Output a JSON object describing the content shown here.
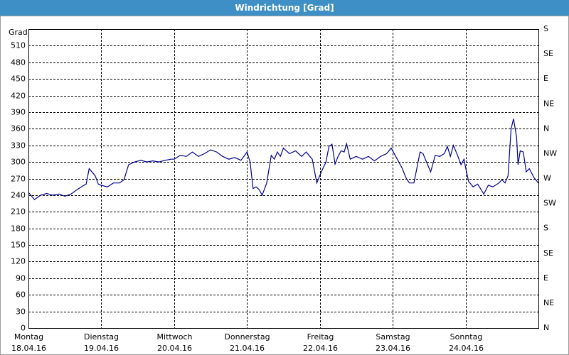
{
  "chart_data": {
    "type": "line",
    "title": "Windrichtung [Grad]",
    "y_label": "Grad",
    "xlim": [
      0,
      168
    ],
    "xticks": [
      {
        "value": 0,
        "label": "Montag",
        "date": "18.04.16"
      },
      {
        "value": 24,
        "label": "Dienstag",
        "date": "19.04.16"
      },
      {
        "value": 48,
        "label": "Mittwoch",
        "date": "20.04.16"
      },
      {
        "value": 72,
        "label": "Donnerstag",
        "date": "21.04.16"
      },
      {
        "value": 96,
        "label": "Freitag",
        "date": "22.04.16"
      },
      {
        "value": 120,
        "label": "Samstag",
        "date": "23.04.16"
      },
      {
        "value": 144,
        "label": "Sonntag",
        "date": "24.04.16"
      }
    ],
    "ylim": [
      0,
      540
    ],
    "yticks": [
      0,
      30,
      60,
      90,
      120,
      150,
      180,
      210,
      240,
      270,
      300,
      330,
      360,
      390,
      420,
      450,
      480,
      510
    ],
    "y2lim": [
      0,
      540
    ],
    "y2ticks": [
      {
        "value": 0,
        "label": "N"
      },
      {
        "value": 45,
        "label": "NE"
      },
      {
        "value": 90,
        "label": "E"
      },
      {
        "value": 135,
        "label": "SE"
      },
      {
        "value": 180,
        "label": "S"
      },
      {
        "value": 225,
        "label": "SW"
      },
      {
        "value": 270,
        "label": "W"
      },
      {
        "value": 315,
        "label": "NW"
      },
      {
        "value": 360,
        "label": "N"
      },
      {
        "value": 405,
        "label": "NE"
      },
      {
        "value": 450,
        "label": "E"
      },
      {
        "value": 495,
        "label": "SE"
      },
      {
        "value": 540,
        "label": "S"
      }
    ],
    "grid": true,
    "series": [
      {
        "color": "#00008b",
        "x": [
          0,
          2,
          4,
          6,
          8,
          10,
          12,
          14,
          16,
          18,
          19,
          20,
          22,
          23,
          24,
          26,
          28,
          30,
          31.5,
          33,
          35,
          37,
          39,
          41,
          43,
          45,
          47,
          48,
          50,
          52,
          54,
          56,
          58,
          60,
          62,
          64,
          66,
          68,
          70,
          72,
          73,
          74,
          75,
          76,
          77,
          78.5,
          80,
          81,
          82,
          83,
          84,
          86,
          88,
          90,
          91.5,
          93.5,
          95,
          96.5,
          98,
          99,
          100,
          101,
          102,
          103,
          104,
          104.8,
          106,
          108,
          110,
          112,
          114,
          116,
          118,
          119.5,
          121,
          123,
          124.5,
          125.5,
          127,
          129,
          130,
          131.5,
          132.5,
          134,
          135.5,
          137,
          138,
          139,
          140,
          141.5,
          142.5,
          143.5,
          144,
          145,
          146.5,
          148,
          150,
          151.5,
          153,
          155,
          156,
          157,
          158,
          159,
          159.8,
          160.8,
          161.3,
          162,
          163,
          164,
          165,
          166.5,
          168
        ],
        "values": [
          245,
          232,
          240,
          243,
          240,
          242,
          238,
          242,
          250,
          257,
          260,
          288,
          275,
          260,
          258,
          255,
          262,
          262,
          268,
          295,
          300,
          303,
          300,
          302,
          300,
          303,
          305,
          305,
          312,
          310,
          318,
          310,
          315,
          322,
          318,
          310,
          305,
          308,
          303,
          318,
          300,
          252,
          255,
          250,
          240,
          262,
          312,
          305,
          318,
          310,
          325,
          315,
          320,
          310,
          318,
          305,
          262,
          282,
          300,
          328,
          332,
          296,
          310,
          320,
          318,
          333,
          305,
          310,
          305,
          310,
          302,
          310,
          315,
          325,
          310,
          290,
          270,
          262,
          262,
          318,
          315,
          295,
          282,
          312,
          310,
          315,
          328,
          310,
          330,
          310,
          295,
          305,
          290,
          265,
          255,
          260,
          242,
          258,
          255,
          262,
          268,
          262,
          275,
          360,
          378,
          345,
          295,
          320,
          318,
          282,
          288,
          272,
          262
        ]
      }
    ]
  }
}
